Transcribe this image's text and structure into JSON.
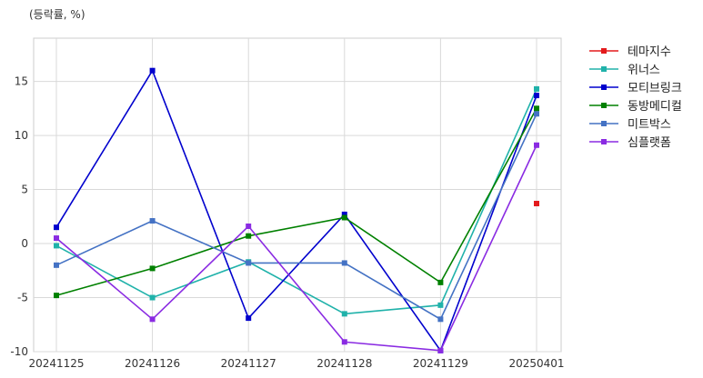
{
  "chart_data": {
    "type": "line",
    "title": "",
    "unit_label": "(등락률, %)",
    "xlabel": "",
    "ylabel": "",
    "categories": [
      "20241125",
      "20241126",
      "20241127",
      "20241128",
      "20241129",
      "20250401"
    ],
    "ylim": [
      -10,
      19
    ],
    "yticks": [
      -10,
      -5,
      0,
      5,
      10,
      15
    ],
    "grid": true,
    "legend_position": "right",
    "series": [
      {
        "name": "테마지수",
        "color": "#e31a1c",
        "values": [
          null,
          null,
          null,
          null,
          null,
          3.7
        ]
      },
      {
        "name": "위너스",
        "color": "#20b2aa",
        "values": [
          -0.2,
          -5.0,
          -1.7,
          -6.5,
          -5.7,
          14.3
        ]
      },
      {
        "name": "모티브링크",
        "color": "#0000cd",
        "values": [
          1.5,
          16.0,
          -6.9,
          2.7,
          -9.9,
          13.7
        ]
      },
      {
        "name": "동방메디컬",
        "color": "#008000",
        "values": [
          -4.8,
          -2.3,
          0.7,
          2.4,
          -3.6,
          12.5
        ]
      },
      {
        "name": "미트박스",
        "color": "#4472c4",
        "values": [
          -2.0,
          2.1,
          -1.8,
          -1.8,
          -7.0,
          12.0
        ]
      },
      {
        "name": "심플랫폼",
        "color": "#8a2be2",
        "values": [
          0.5,
          -7.0,
          1.6,
          -9.1,
          -9.9,
          9.1
        ]
      }
    ]
  }
}
